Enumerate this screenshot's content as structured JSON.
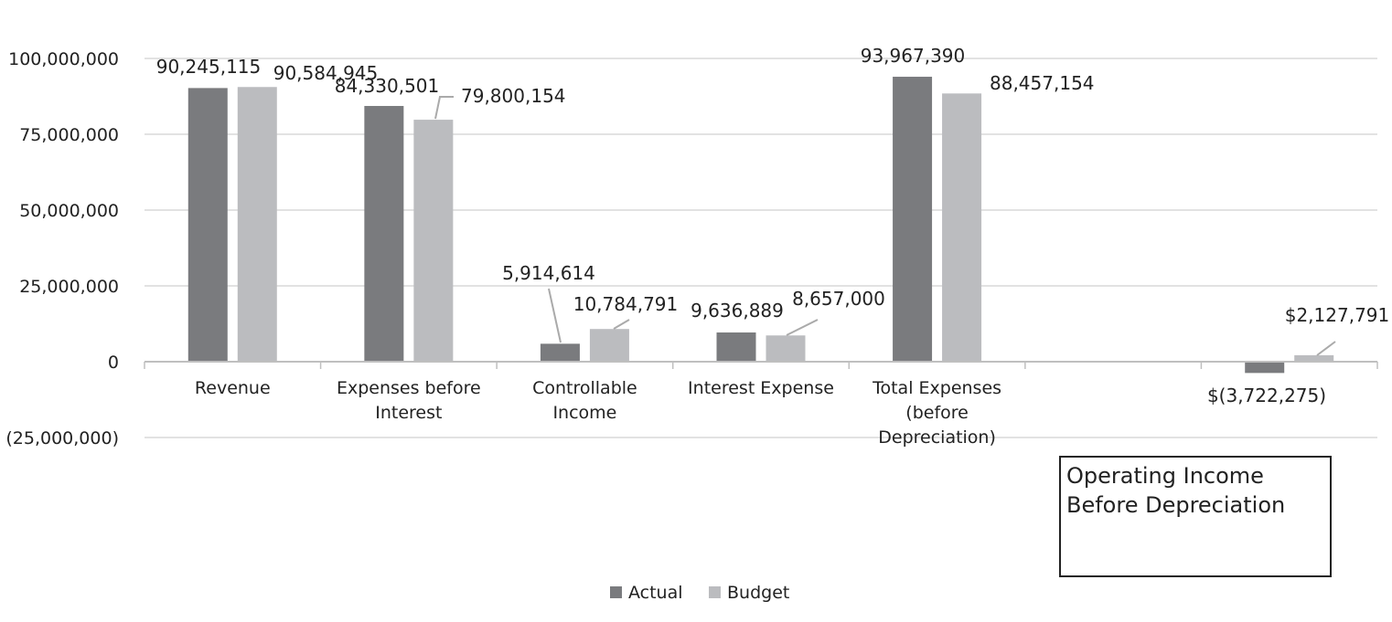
{
  "chart_data": {
    "type": "bar",
    "title": "",
    "xlabel": "",
    "ylabel": "",
    "ylim": [
      -25000000,
      100000000
    ],
    "yticks": [
      {
        "value": 100000000,
        "label": "100,000,000"
      },
      {
        "value": 75000000,
        "label": "75,000,000"
      },
      {
        "value": 50000000,
        "label": "50,000,000"
      },
      {
        "value": 25000000,
        "label": "25,000,000"
      },
      {
        "value": 0,
        "label": "0"
      },
      {
        "value": -25000000,
        "label": "(25,000,000)"
      }
    ],
    "categories": [
      [
        "Revenue"
      ],
      [
        "Expenses before",
        "Interest"
      ],
      [
        "Controllable",
        "Income"
      ],
      [
        "Interest Expense"
      ],
      [
        "Total Expenses",
        "(before",
        "Depreciation)"
      ],
      [],
      []
    ],
    "series": [
      {
        "name": "Actual",
        "color": "#7a7b7e",
        "values": [
          90245115,
          84330501,
          5914614,
          9636889,
          93967390,
          null,
          -3722275
        ],
        "labels": [
          "90,245,115",
          "84,330,501",
          "5,914,614",
          "9,636,889",
          "93,967,390",
          null,
          "$(3,722,275)"
        ]
      },
      {
        "name": "Budget",
        "color": "#bbbcbf",
        "values": [
          90584945,
          79800154,
          10784791,
          8657000,
          88457154,
          null,
          2127791
        ],
        "labels": [
          "90,584,945",
          "79,800,154",
          "10,784,791",
          "8,657,000",
          "88,457,154",
          null,
          "$2,127,791"
        ]
      }
    ],
    "legend": {
      "position": "bottom",
      "entries": [
        "Actual",
        "Budget"
      ]
    },
    "grid": true
  },
  "annotation": {
    "lines": [
      "Operating Income",
      "Before Depreciation"
    ]
  }
}
